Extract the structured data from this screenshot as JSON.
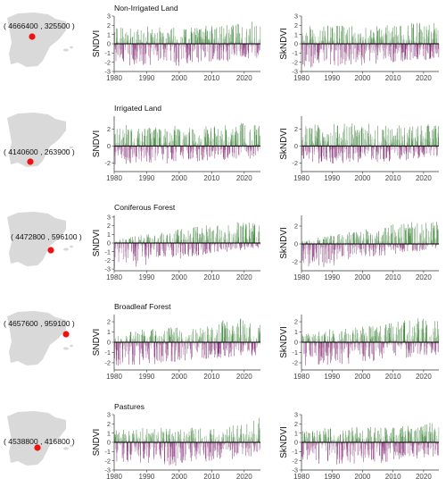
{
  "colors": {
    "positive": "#2f7a2c",
    "negative": "#7b1f6b",
    "map_fill": "#d9d9d9",
    "point": "#ee1111",
    "axis": "#333333"
  },
  "rows": [
    {
      "title": "Non-Irrigated Land",
      "coord_label": "( 4666400 , 325500 )",
      "map_point": "north-central"
    },
    {
      "title": "Irrigated Land",
      "coord_label": "( 4140600 , 263900 )",
      "map_point": "south"
    },
    {
      "title": "Coniferous Forest",
      "coord_label": "( 4472800 , 596100 )",
      "map_point": "east"
    },
    {
      "title": "Broadleaf Forest",
      "coord_label": "( 4657600 , 959100 )",
      "map_point": "north-east"
    },
    {
      "title": "Pastures",
      "coord_label": "( 4538800 , 416800 )",
      "map_point": "center"
    }
  ],
  "chart_data": [
    {
      "type": "bar",
      "row": 0,
      "ylabel": "SNDVI",
      "xlim": [
        1980,
        2025
      ],
      "ylim": [
        -3,
        3
      ],
      "xticks": [
        "1980",
        "1990",
        "2000",
        "2010",
        "2020"
      ],
      "yticks": [
        "3",
        "2",
        "1",
        "0",
        "-1",
        "-2",
        "-3"
      ],
      "amp_pos": [
        [
          1980,
          1.8
        ],
        [
          1990,
          1.9
        ],
        [
          2000,
          1.8
        ],
        [
          2010,
          2.0
        ],
        [
          2020,
          2.4
        ],
        [
          2025,
          2.6
        ]
      ],
      "amp_neg": [
        [
          1980,
          2.6
        ],
        [
          1990,
          2.5
        ],
        [
          2000,
          2.4
        ],
        [
          2010,
          2.0
        ],
        [
          2020,
          1.8
        ],
        [
          2025,
          1.6
        ]
      ]
    },
    {
      "type": "bar",
      "row": 0,
      "ylabel": "SkNDVI",
      "xlim": [
        1980,
        2025
      ],
      "ylim": [
        -3,
        3
      ],
      "xticks": [
        "1980",
        "1990",
        "2000",
        "2010",
        "2020"
      ],
      "yticks": [
        "3",
        "2",
        "1",
        "0",
        "-1",
        "-2",
        "-3"
      ],
      "amp_pos": [
        [
          1980,
          1.9
        ],
        [
          1990,
          2.0
        ],
        [
          2000,
          1.9
        ],
        [
          2010,
          2.1
        ],
        [
          2020,
          2.4
        ],
        [
          2025,
          2.6
        ]
      ],
      "amp_neg": [
        [
          1980,
          2.6
        ],
        [
          1990,
          2.5
        ],
        [
          2000,
          2.3
        ],
        [
          2010,
          2.0
        ],
        [
          2020,
          1.8
        ],
        [
          2025,
          1.6
        ]
      ]
    },
    {
      "type": "bar",
      "row": 1,
      "ylabel": "SNDVI",
      "xlim": [
        1980,
        2025
      ],
      "ylim": [
        -3,
        3.5
      ],
      "xticks": [
        "1980",
        "1990",
        "2000",
        "2010",
        "2020"
      ],
      "yticks": [
        "2",
        "0",
        "-2"
      ],
      "amp_pos": [
        [
          1980,
          2.6
        ],
        [
          1990,
          2.4
        ],
        [
          2000,
          2.5
        ],
        [
          2010,
          2.3
        ],
        [
          2020,
          2.8
        ],
        [
          2025,
          2.5
        ]
      ],
      "amp_neg": [
        [
          1980,
          2.2
        ],
        [
          1990,
          2.2
        ],
        [
          2000,
          2.0
        ],
        [
          2010,
          1.8
        ],
        [
          2020,
          1.6
        ],
        [
          2025,
          1.5
        ]
      ]
    },
    {
      "type": "bar",
      "row": 1,
      "ylabel": "SkNDVI",
      "xlim": [
        1980,
        2025
      ],
      "ylim": [
        -3,
        3.5
      ],
      "xticks": [
        "1980",
        "1990",
        "2000",
        "2010",
        "2020"
      ],
      "yticks": [
        "2",
        "0",
        "-2"
      ],
      "amp_pos": [
        [
          1980,
          2.5
        ],
        [
          1990,
          2.6
        ],
        [
          2000,
          2.7
        ],
        [
          2010,
          2.4
        ],
        [
          2020,
          2.6
        ],
        [
          2025,
          2.5
        ]
      ],
      "amp_neg": [
        [
          1980,
          2.0
        ],
        [
          1990,
          2.1
        ],
        [
          2000,
          2.0
        ],
        [
          2010,
          1.8
        ],
        [
          2020,
          1.6
        ],
        [
          2025,
          1.5
        ]
      ]
    },
    {
      "type": "bar",
      "row": 2,
      "ylabel": "SNDVI",
      "xlim": [
        1980,
        2025
      ],
      "ylim": [
        -3.2,
        3.2
      ],
      "xticks": [
        "1980",
        "1990",
        "2000",
        "2010",
        "2020"
      ],
      "yticks": [
        "3",
        "2",
        "1",
        "0",
        "-1",
        "-2",
        "-3"
      ],
      "amp_pos": [
        [
          1980,
          0.4
        ],
        [
          1990,
          1.0
        ],
        [
          2000,
          1.6
        ],
        [
          2010,
          2.2
        ],
        [
          2020,
          2.6
        ],
        [
          2025,
          2.6
        ]
      ],
      "amp_neg": [
        [
          1980,
          3.0
        ],
        [
          1990,
          2.6
        ],
        [
          2000,
          1.8
        ],
        [
          2010,
          1.2
        ],
        [
          2020,
          0.8
        ],
        [
          2025,
          0.6
        ]
      ]
    },
    {
      "type": "bar",
      "row": 2,
      "ylabel": "SkNDVI",
      "xlim": [
        1980,
        2025
      ],
      "ylim": [
        -3,
        3.2
      ],
      "xticks": [
        "1980",
        "1990",
        "2000",
        "2010",
        "2020"
      ],
      "yticks": [
        "2",
        "0",
        "-2"
      ],
      "amp_pos": [
        [
          1980,
          0.4
        ],
        [
          1990,
          1.0
        ],
        [
          2000,
          1.6
        ],
        [
          2010,
          2.2
        ],
        [
          2020,
          2.6
        ],
        [
          2025,
          2.6
        ]
      ],
      "amp_neg": [
        [
          1980,
          2.8
        ],
        [
          1990,
          2.5
        ],
        [
          2000,
          1.8
        ],
        [
          2010,
          1.2
        ],
        [
          2020,
          0.8
        ],
        [
          2025,
          0.6
        ]
      ]
    },
    {
      "type": "bar",
      "row": 3,
      "ylabel": "SNDVI",
      "xlim": [
        1980,
        2025
      ],
      "ylim": [
        -2.7,
        2.7
      ],
      "xticks": [
        "1980",
        "1990",
        "2000",
        "2010",
        "2020"
      ],
      "yticks": [
        "2",
        "1",
        "0",
        "-1",
        "-2"
      ],
      "amp_pos": [
        [
          1980,
          0.8
        ],
        [
          1990,
          1.3
        ],
        [
          2000,
          1.5
        ],
        [
          2010,
          2.0
        ],
        [
          2020,
          2.5
        ],
        [
          2025,
          2.2
        ]
      ],
      "amp_neg": [
        [
          1980,
          2.4
        ],
        [
          1990,
          2.2
        ],
        [
          2000,
          2.0
        ],
        [
          2010,
          1.6
        ],
        [
          2020,
          1.4
        ],
        [
          2025,
          1.3
        ]
      ]
    },
    {
      "type": "bar",
      "row": 3,
      "ylabel": "SkNDVI",
      "xlim": [
        1980,
        2025
      ],
      "ylim": [
        -2.7,
        2.7
      ],
      "xticks": [
        "1980",
        "1990",
        "2000",
        "2010",
        "2020"
      ],
      "yticks": [
        "2",
        "1",
        "0",
        "-1",
        "-2"
      ],
      "amp_pos": [
        [
          1980,
          0.8
        ],
        [
          1990,
          1.3
        ],
        [
          2000,
          1.5
        ],
        [
          2010,
          2.0
        ],
        [
          2020,
          2.5
        ],
        [
          2025,
          2.2
        ]
      ],
      "amp_neg": [
        [
          1980,
          2.4
        ],
        [
          1990,
          2.2
        ],
        [
          2000,
          2.0
        ],
        [
          2010,
          1.6
        ],
        [
          2020,
          1.4
        ],
        [
          2025,
          1.3
        ]
      ]
    },
    {
      "type": "bar",
      "row": 4,
      "ylabel": "SNDVI",
      "xlim": [
        1980,
        2025
      ],
      "ylim": [
        -3,
        3
      ],
      "xticks": [
        "1980",
        "1990",
        "2000",
        "2010",
        "2020"
      ],
      "yticks": [
        "3",
        "2",
        "1",
        "0",
        "-1",
        "-2",
        "-3"
      ],
      "amp_pos": [
        [
          1980,
          1.3
        ],
        [
          1990,
          1.6
        ],
        [
          2000,
          1.7
        ],
        [
          2010,
          1.7
        ],
        [
          2020,
          1.9
        ],
        [
          2025,
          2.8
        ]
      ],
      "amp_neg": [
        [
          1980,
          2.2
        ],
        [
          1990,
          2.4
        ],
        [
          2000,
          2.6
        ],
        [
          2010,
          2.0
        ],
        [
          2020,
          1.8
        ],
        [
          2025,
          1.6
        ]
      ]
    },
    {
      "type": "bar",
      "row": 4,
      "ylabel": "SkNDVI",
      "xlim": [
        1980,
        2025
      ],
      "ylim": [
        -3,
        3
      ],
      "xticks": [
        "1980",
        "1990",
        "2000",
        "2010",
        "2020"
      ],
      "yticks": [
        "3",
        "2",
        "1",
        "0",
        "-1",
        "-2",
        "-3"
      ],
      "amp_pos": [
        [
          1980,
          1.3
        ],
        [
          1990,
          1.6
        ],
        [
          2000,
          1.7
        ],
        [
          2010,
          1.7
        ],
        [
          2020,
          1.9
        ],
        [
          2025,
          2.8
        ]
      ],
      "amp_neg": [
        [
          1980,
          2.2
        ],
        [
          1990,
          2.4
        ],
        [
          2000,
          2.6
        ],
        [
          2010,
          2.0
        ],
        [
          2020,
          1.8
        ],
        [
          2025,
          1.6
        ]
      ]
    }
  ]
}
